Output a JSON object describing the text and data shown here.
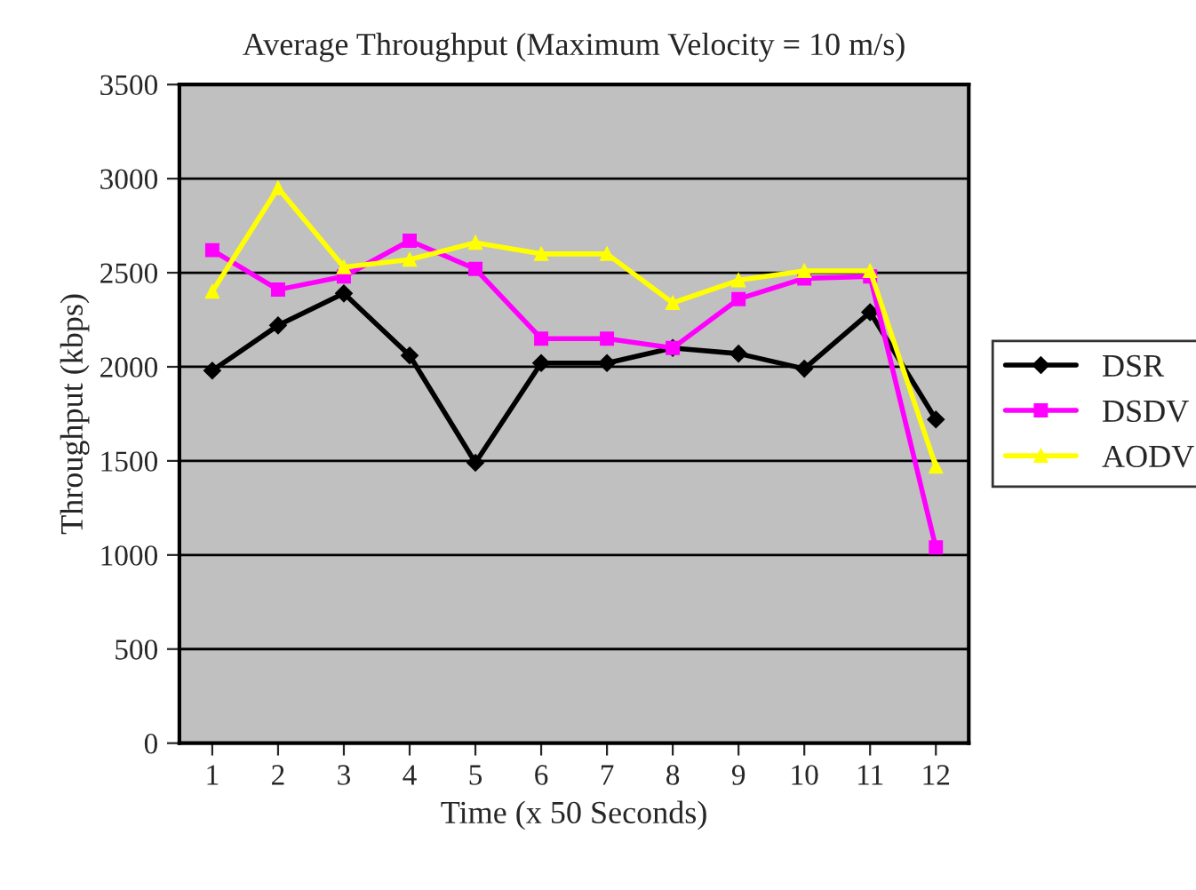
{
  "chart_data": {
    "type": "line",
    "title": "Average Throughput (Maximum Velocity = 10 m/s)",
    "xlabel": "Time (x 50 Seconds)",
    "ylabel": "Throughput (kbps)",
    "categories": [
      "1",
      "2",
      "3",
      "4",
      "5",
      "6",
      "7",
      "8",
      "9",
      "10",
      "11",
      "12"
    ],
    "series": [
      {
        "name": "DSR",
        "color": "#000000",
        "marker": "diamond",
        "values": [
          1980,
          2220,
          2390,
          2060,
          1490,
          2020,
          2020,
          2100,
          2070,
          1990,
          2290,
          1720
        ]
      },
      {
        "name": "DSDV",
        "color": "#ff00ff",
        "marker": "square",
        "values": [
          2620,
          2410,
          2480,
          2670,
          2520,
          2150,
          2150,
          2100,
          2360,
          2470,
          2480,
          1040
        ]
      },
      {
        "name": "AODV",
        "color": "#ffff00",
        "marker": "triangle",
        "values": [
          2400,
          2950,
          2530,
          2570,
          2660,
          2600,
          2600,
          2340,
          2460,
          2510,
          2510,
          1470
        ]
      }
    ],
    "ylim": [
      0,
      3500
    ],
    "yticks": [
      0,
      500,
      1000,
      1500,
      2000,
      2500,
      3000,
      3500
    ],
    "grid": "y",
    "legend": "right",
    "line_style": "solid"
  }
}
